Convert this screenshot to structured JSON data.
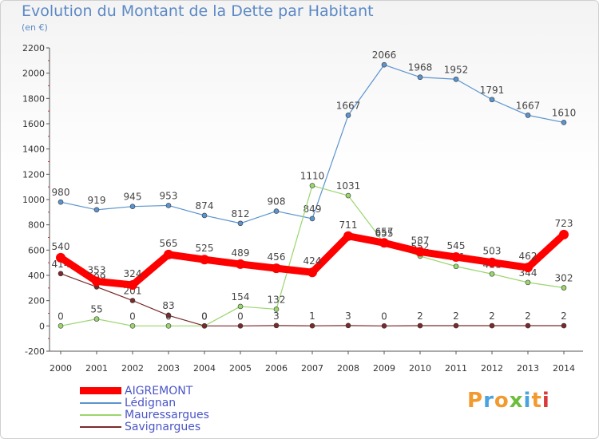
{
  "title": "Evolution du Montant de la Dette par Habitant",
  "subtitle": "(en €)",
  "logo": {
    "text": "Proxiti",
    "colors": [
      "#f29a2e",
      "#4aa3df",
      "#f29a2e",
      "#6bbf3a",
      "#4aa3df",
      "#f29a2e",
      "#d83a3a"
    ]
  },
  "chart_data": {
    "type": "line",
    "x": [
      "2000",
      "2001",
      "2002",
      "2003",
      "2004",
      "2005",
      "2006",
      "2007",
      "2008",
      "2009",
      "2010",
      "2011",
      "2012",
      "2013",
      "2014"
    ],
    "ylim": [
      -200,
      2200
    ],
    "yticks": [
      "-200",
      "0",
      "200",
      "400",
      "600",
      "800",
      "1000",
      "1200",
      "1400",
      "1600",
      "1800",
      "2000",
      "2200"
    ],
    "grid": false,
    "legend_position": "bottom-left",
    "series": [
      {
        "name": "Lédignan",
        "color": "#5b94cf",
        "values": [
          980,
          919,
          945,
          953,
          874,
          812,
          908,
          849,
          1667,
          2066,
          1968,
          1952,
          1791,
          1667,
          1610
        ]
      },
      {
        "name": "Mauressargues",
        "color": "#9ad66e",
        "values": [
          0,
          55,
          0,
          0,
          0,
          154,
          132,
          1110,
          1031,
          655,
          552,
          471,
          411,
          344,
          302
        ]
      },
      {
        "name": "Savignargues",
        "color": "#7a2a2a",
        "values": [
          414,
          309,
          201,
          83,
          0,
          0,
          3,
          1,
          3,
          0,
          2,
          2,
          2,
          2,
          2
        ]
      },
      {
        "name": "AIGREMONT",
        "color": "#ff0000",
        "values": [
          540,
          353,
          324,
          565,
          525,
          489,
          456,
          424,
          711,
          657,
          587,
          545,
          503,
          462,
          723
        ]
      }
    ],
    "legend_order": [
      "AIGREMONT",
      "Lédignan",
      "Mauressargues",
      "Savignargues"
    ]
  }
}
